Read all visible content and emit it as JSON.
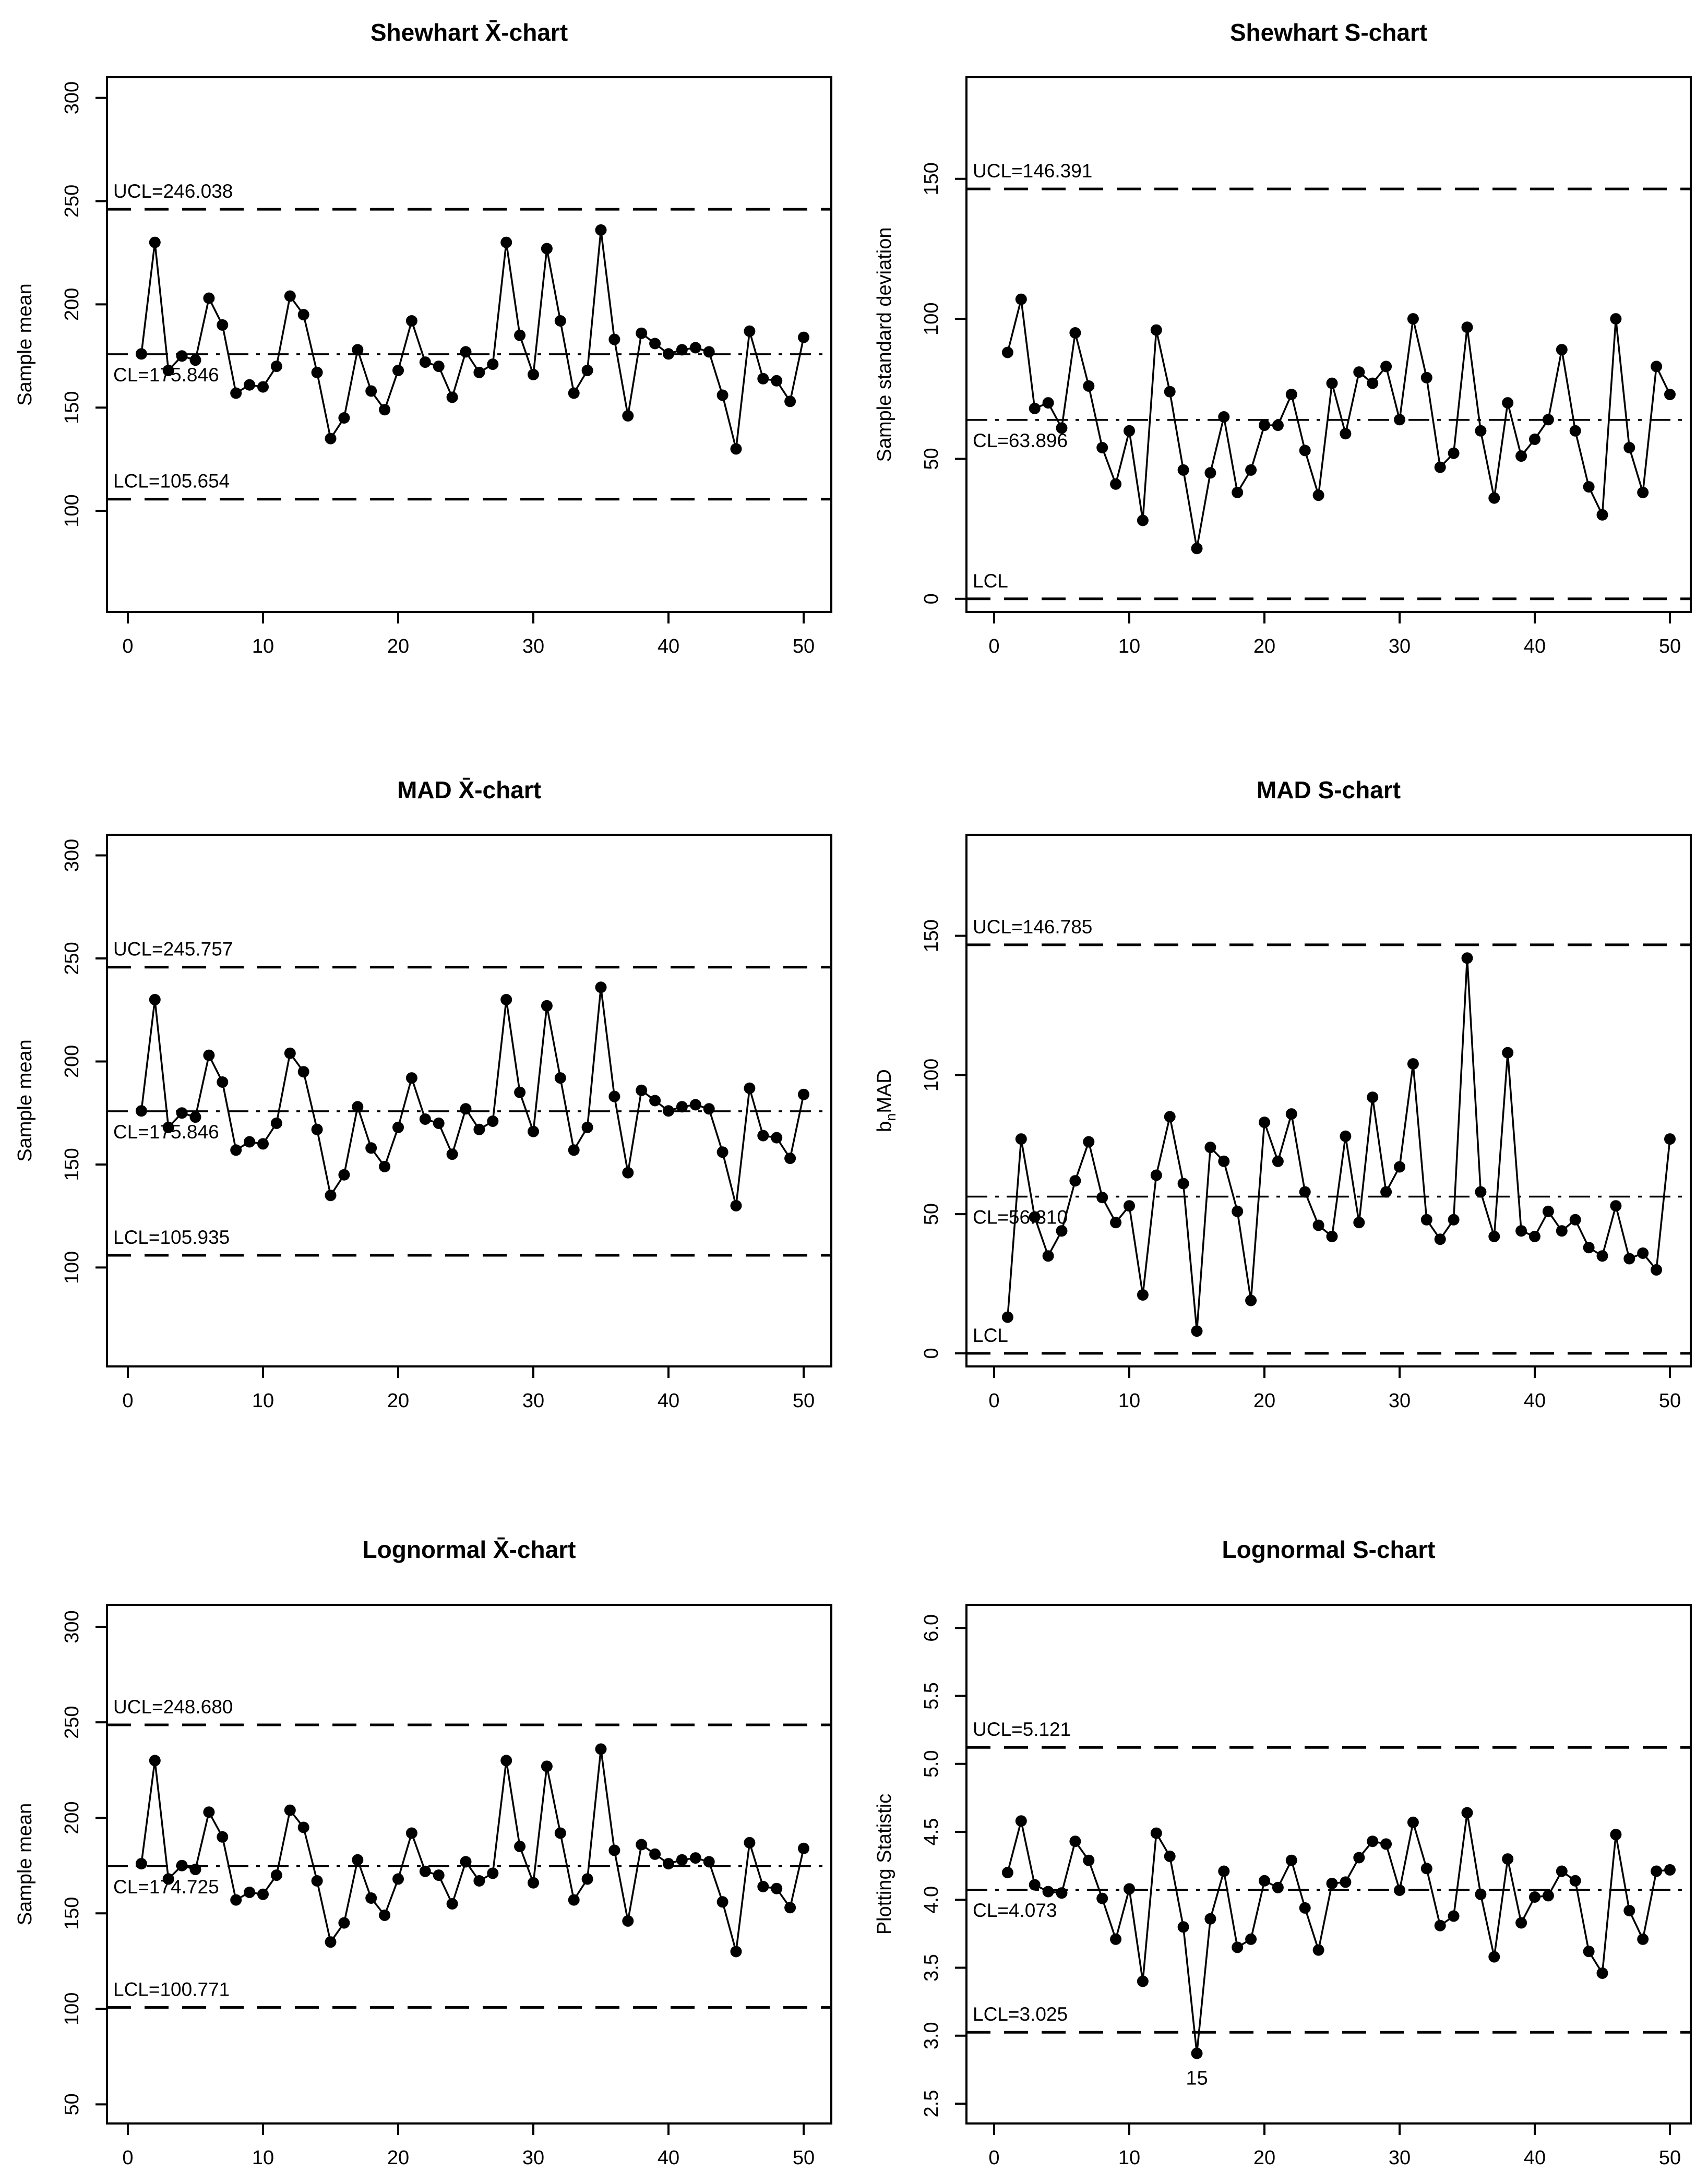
{
  "page": {
    "background": "#ffffff",
    "foreground": "#000000",
    "layout": "3x2 grid of control charts"
  },
  "chart_data": [
    {
      "type": "line",
      "title": "Shewhart X̄-chart",
      "ylabel": "Sample mean",
      "xlabel": "",
      "grid": false,
      "legend": "none",
      "xticks": [
        0,
        10,
        20,
        30,
        40,
        50
      ],
      "ytick_labels": [
        "100",
        "150",
        "200",
        "250",
        "300"
      ],
      "ytick_values": [
        100,
        150,
        200,
        250,
        300
      ],
      "ylim": [
        51,
        310
      ],
      "xlim": [
        -1.5,
        52
      ],
      "lines": {
        "ucl": {
          "value": 246.038,
          "label": "UCL=246.038"
        },
        "cl": {
          "value": 175.846,
          "label": "CL=175.846"
        },
        "lcl": {
          "value": 105.654,
          "label": "LCL=105.654"
        }
      },
      "x": [
        1,
        2,
        3,
        4,
        5,
        6,
        7,
        8,
        9,
        10,
        11,
        12,
        13,
        14,
        15,
        16,
        17,
        18,
        19,
        20,
        21,
        22,
        23,
        24,
        25,
        26,
        27,
        28,
        29,
        30,
        31,
        32,
        33,
        34,
        35,
        36,
        37,
        38,
        39,
        40,
        41,
        42,
        43,
        44,
        45,
        46,
        47,
        48,
        49,
        50
      ],
      "values": [
        176,
        230,
        168,
        175,
        173,
        203,
        190,
        157,
        161,
        160,
        170,
        204,
        195,
        167,
        135,
        145,
        178,
        158,
        149,
        168,
        192,
        172,
        170,
        155,
        177,
        167,
        171,
        230,
        185,
        166,
        227,
        192,
        157,
        168,
        236,
        183,
        146,
        186,
        181,
        176,
        178,
        179,
        177,
        156,
        130,
        187,
        164,
        163,
        153,
        184
      ],
      "annotations": []
    },
    {
      "type": "line",
      "title": "Shewhart S-chart",
      "ylabel": "Sample standard deviation",
      "xlabel": "",
      "grid": false,
      "legend": "none",
      "xticks": [
        0,
        10,
        20,
        30,
        40,
        50
      ],
      "ytick_labels": [
        "0",
        "50",
        "100",
        "150"
      ],
      "ytick_values": [
        0,
        50,
        100,
        150
      ],
      "ylim": [
        -4.7,
        186.3
      ],
      "xlim": [
        -1.5,
        52
      ],
      "lines": {
        "ucl": {
          "value": 146.391,
          "label": "UCL=146.391"
        },
        "cl": {
          "value": 63.896,
          "label": "CL=63.896"
        },
        "lcl": {
          "value": 0,
          "label": "LCL"
        }
      },
      "x": [
        1,
        2,
        3,
        4,
        5,
        6,
        7,
        8,
        9,
        10,
        11,
        12,
        13,
        14,
        15,
        16,
        17,
        18,
        19,
        20,
        21,
        22,
        23,
        24,
        25,
        26,
        27,
        28,
        29,
        30,
        31,
        32,
        33,
        34,
        35,
        36,
        37,
        38,
        39,
        40,
        41,
        42,
        43,
        44,
        45,
        46,
        47,
        48,
        49,
        50
      ],
      "values": [
        88,
        107,
        68,
        70,
        61,
        95,
        76,
        54,
        41,
        60,
        28,
        96,
        74,
        46,
        18,
        45,
        65,
        38,
        46,
        62,
        62,
        73,
        53,
        37,
        77,
        59,
        81,
        77,
        83,
        64,
        100,
        79,
        47,
        52,
        97,
        60,
        36,
        70,
        51,
        57,
        64,
        89,
        60,
        40,
        30,
        100,
        54,
        38,
        83,
        73
      ],
      "annotations": []
    },
    {
      "type": "line",
      "title": "MAD X̄-chart",
      "ylabel": "Sample mean",
      "xlabel": "",
      "grid": false,
      "legend": "none",
      "xticks": [
        0,
        10,
        20,
        30,
        40,
        50
      ],
      "ytick_labels": [
        "100",
        "150",
        "200",
        "250",
        "300"
      ],
      "ytick_values": [
        100,
        150,
        200,
        250,
        300
      ],
      "ylim": [
        52,
        310
      ],
      "xlim": [
        -1.5,
        52
      ],
      "lines": {
        "ucl": {
          "value": 245.757,
          "label": "UCL=245.757"
        },
        "cl": {
          "value": 175.846,
          "label": "CL=175.846"
        },
        "lcl": {
          "value": 105.935,
          "label": "LCL=105.935"
        }
      },
      "x": [
        1,
        2,
        3,
        4,
        5,
        6,
        7,
        8,
        9,
        10,
        11,
        12,
        13,
        14,
        15,
        16,
        17,
        18,
        19,
        20,
        21,
        22,
        23,
        24,
        25,
        26,
        27,
        28,
        29,
        30,
        31,
        32,
        33,
        34,
        35,
        36,
        37,
        38,
        39,
        40,
        41,
        42,
        43,
        44,
        45,
        46,
        47,
        48,
        49,
        50
      ],
      "values": [
        176,
        230,
        168,
        175,
        173,
        203,
        190,
        157,
        161,
        160,
        170,
        204,
        195,
        167,
        135,
        145,
        178,
        158,
        149,
        168,
        192,
        172,
        170,
        155,
        177,
        167,
        171,
        230,
        185,
        166,
        227,
        192,
        157,
        168,
        236,
        183,
        146,
        186,
        181,
        176,
        178,
        179,
        177,
        156,
        130,
        187,
        164,
        163,
        153,
        184
      ],
      "annotations": []
    },
    {
      "type": "line",
      "title": "MAD S-chart",
      "ylabel_parts": [
        {
          "text": "b",
          "sub": false
        },
        {
          "text": "n",
          "sub": true
        },
        {
          "text": "MAD",
          "sub": false
        }
      ],
      "xlabel": "",
      "grid": false,
      "legend": "none",
      "xticks": [
        0,
        10,
        20,
        30,
        40,
        50
      ],
      "ytick_labels": [
        "0",
        "50",
        "100",
        "150"
      ],
      "ytick_values": [
        0,
        50,
        100,
        150
      ],
      "ylim": [
        -4.7,
        186.3
      ],
      "xlim": [
        -1.5,
        52
      ],
      "lines": {
        "ucl": {
          "value": 146.785,
          "label": "UCL=146.785"
        },
        "cl": {
          "value": 56.31,
          "label": "CL=56.310"
        },
        "lcl": {
          "value": 0,
          "label": "LCL"
        }
      },
      "x": [
        1,
        2,
        3,
        4,
        5,
        6,
        7,
        8,
        9,
        10,
        11,
        12,
        13,
        14,
        15,
        16,
        17,
        18,
        19,
        20,
        21,
        22,
        23,
        24,
        25,
        26,
        27,
        28,
        29,
        30,
        31,
        32,
        33,
        34,
        35,
        36,
        37,
        38,
        39,
        40,
        41,
        42,
        43,
        44,
        45,
        46,
        47,
        48,
        49,
        50
      ],
      "values": [
        13,
        77,
        49,
        35,
        44,
        62,
        76,
        56,
        47,
        53,
        21,
        64,
        85,
        61,
        8,
        74,
        69,
        51,
        19,
        83,
        69,
        86,
        58,
        46,
        42,
        78,
        47,
        92,
        58,
        67,
        104,
        48,
        41,
        48,
        142,
        58,
        42,
        108,
        44,
        42,
        51,
        44,
        48,
        38,
        35,
        53,
        34,
        36,
        30,
        77
      ],
      "annotations": []
    },
    {
      "type": "line",
      "title": "Lognormal X̄-chart",
      "ylabel": "Sample mean",
      "xlabel": "",
      "grid": false,
      "legend": "none",
      "xticks": [
        0,
        10,
        20,
        30,
        40,
        50
      ],
      "ytick_labels": [
        "50",
        "100",
        "150",
        "200",
        "250",
        "300"
      ],
      "ytick_values": [
        50,
        100,
        150,
        200,
        250,
        300
      ],
      "ylim": [
        40,
        311.5
      ],
      "xlim": [
        -1.5,
        52
      ],
      "lines": {
        "ucl": {
          "value": 248.68,
          "label": "UCL=248.680"
        },
        "cl": {
          "value": 174.725,
          "label": "CL=174.725"
        },
        "lcl": {
          "value": 100.771,
          "label": "LCL=100.771"
        }
      },
      "x": [
        1,
        2,
        3,
        4,
        5,
        6,
        7,
        8,
        9,
        10,
        11,
        12,
        13,
        14,
        15,
        16,
        17,
        18,
        19,
        20,
        21,
        22,
        23,
        24,
        25,
        26,
        27,
        28,
        29,
        30,
        31,
        32,
        33,
        34,
        35,
        36,
        37,
        38,
        39,
        40,
        41,
        42,
        43,
        44,
        45,
        46,
        47,
        48,
        49,
        50
      ],
      "values": [
        176,
        230,
        168,
        175,
        173,
        203,
        190,
        157,
        161,
        160,
        170,
        204,
        195,
        167,
        135,
        145,
        178,
        158,
        149,
        168,
        192,
        172,
        170,
        155,
        177,
        167,
        171,
        230,
        185,
        166,
        227,
        192,
        157,
        168,
        236,
        183,
        146,
        186,
        181,
        176,
        178,
        179,
        177,
        156,
        130,
        187,
        164,
        163,
        153,
        184
      ],
      "annotations": []
    },
    {
      "type": "line",
      "title": "Lognormal S-chart",
      "ylabel": "Plotting Statistic",
      "xlabel": "",
      "grid": false,
      "legend": "none",
      "xticks": [
        0,
        10,
        20,
        30,
        40,
        50
      ],
      "ytick_labels": [
        "2.5",
        "3.0",
        "3.5",
        "4.0",
        "4.5",
        "5.0",
        "5.5",
        "6.0"
      ],
      "ytick_values": [
        2.5,
        3.0,
        3.5,
        4.0,
        4.5,
        5.0,
        5.5,
        6.0
      ],
      "ylim": [
        2.354,
        6.17
      ],
      "xlim": [
        -1.5,
        52
      ],
      "lines": {
        "ucl": {
          "value": 5.121,
          "label": "UCL=5.121"
        },
        "cl": {
          "value": 4.073,
          "label": "CL=4.073"
        },
        "lcl": {
          "value": 3.025,
          "label": "LCL=3.025"
        }
      },
      "x": [
        1,
        2,
        3,
        4,
        5,
        6,
        7,
        8,
        9,
        10,
        11,
        12,
        13,
        14,
        15,
        16,
        17,
        18,
        19,
        20,
        21,
        22,
        23,
        24,
        25,
        26,
        27,
        28,
        29,
        30,
        31,
        32,
        33,
        34,
        35,
        36,
        37,
        38,
        39,
        40,
        41,
        42,
        43,
        44,
        45,
        46,
        47,
        48,
        49,
        50
      ],
      "values": [
        4.2,
        4.58,
        4.11,
        4.06,
        4.05,
        4.43,
        4.29,
        4.01,
        3.71,
        4.08,
        3.4,
        4.49,
        4.32,
        3.8,
        2.87,
        3.86,
        4.21,
        3.65,
        3.71,
        4.14,
        4.09,
        4.29,
        3.94,
        3.63,
        4.12,
        4.13,
        4.31,
        4.43,
        4.41,
        4.07,
        4.57,
        4.23,
        3.81,
        3.88,
        4.64,
        4.04,
        3.58,
        4.3,
        3.83,
        4.02,
        4.03,
        4.21,
        4.14,
        3.62,
        3.46,
        4.48,
        3.92,
        3.71,
        4.21,
        4.22
      ],
      "annotations": [
        {
          "text": "15",
          "x": 15,
          "y": 2.87
        }
      ]
    }
  ]
}
